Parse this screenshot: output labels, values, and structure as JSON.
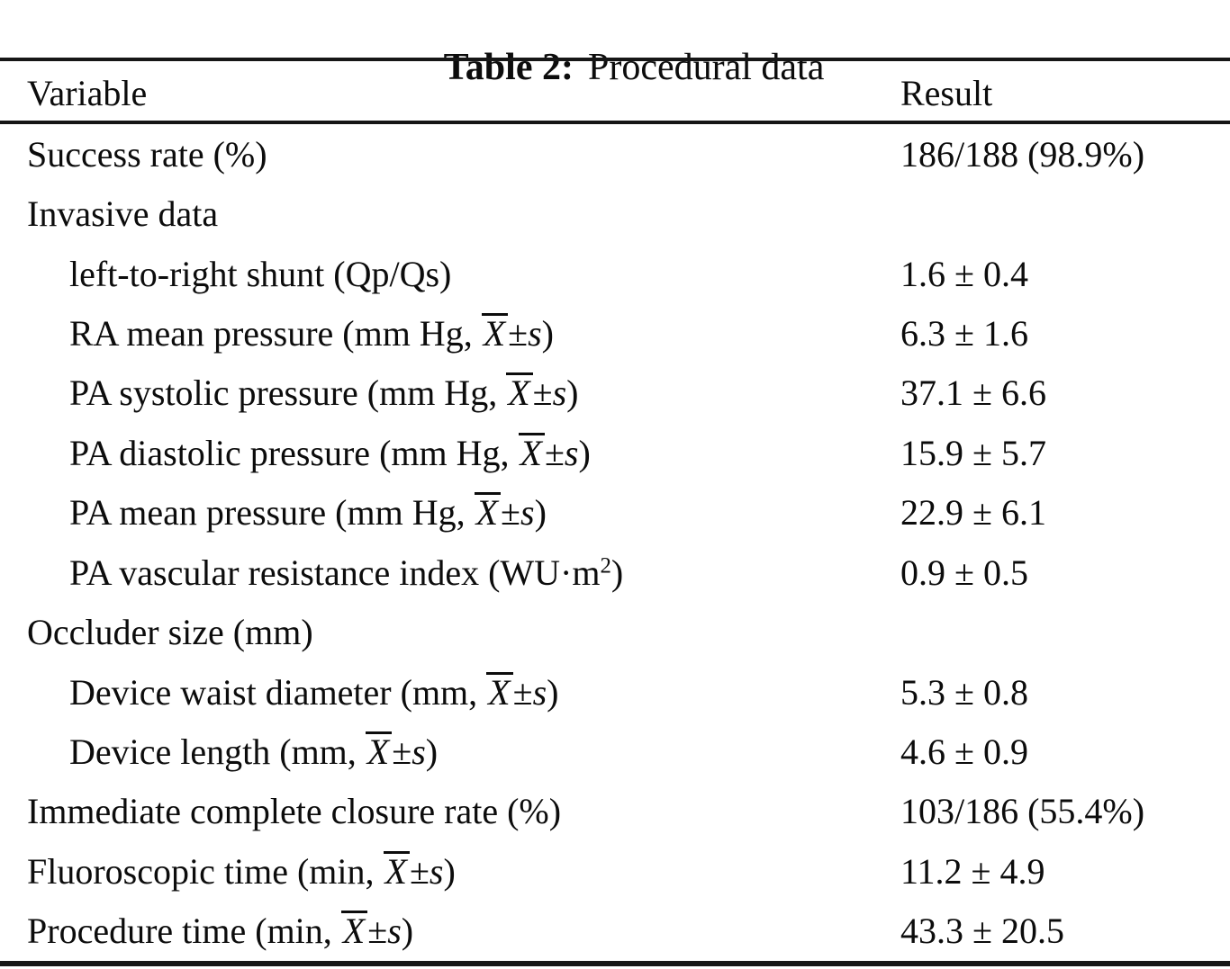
{
  "title": {
    "label_bold": "Table 2:",
    "label_rest": "Procedural data"
  },
  "table": {
    "columns": [
      "Variable",
      "Result"
    ],
    "rows": [
      {
        "label": "Success rate (%)",
        "result": "186/188 (98.9%)",
        "indent": 0
      },
      {
        "label": "Invasive data",
        "result": "",
        "indent": 0
      },
      {
        "label": "left-to-right shunt (Qp/Qs)",
        "result": "1.6 ± 0.4",
        "indent": 1
      },
      {
        "label": "RA mean pressure (mm Hg, [XS])",
        "result": "6.3 ± 1.6",
        "indent": 1
      },
      {
        "label": "PA systolic pressure (mm Hg, [XS])",
        "result": "37.1 ± 6.6",
        "indent": 1
      },
      {
        "label": "PA diastolic pressure (mm Hg, [XS])",
        "result": "15.9 ± 5.7",
        "indent": 1
      },
      {
        "label": "PA mean pressure (mm Hg, [XS])",
        "result": "22.9 ± 6.1",
        "indent": 1
      },
      {
        "label": "PA vascular resistance index (WU·m[SUP2])",
        "result": "0.9 ± 0.5",
        "indent": 1
      },
      {
        "label": "Occluder size (mm)",
        "result": "",
        "indent": 0
      },
      {
        "label": "Device waist diameter (mm, [XS])",
        "result": "5.3 ± 0.8",
        "indent": 1
      },
      {
        "label": "Device length (mm, [XS])",
        "result": "4.6 ± 0.9",
        "indent": 1
      },
      {
        "label": "Immediate complete closure rate (%)",
        "result": "103/186 (55.4%)",
        "indent": 0
      },
      {
        "label": "Fluoroscopic time (min, [XS])",
        "result": "11.2 ± 4.9",
        "indent": 0
      },
      {
        "label": "Procedure time (min, [XS])",
        "result": "43.3 ± 20.5",
        "indent": 0
      }
    ]
  },
  "notation": {
    "xbar_symbol": "X̅±s",
    "superscript_two": "2"
  },
  "colors": {
    "background": "#ffffff",
    "text": "#0c0c0c",
    "rule": "#161616"
  }
}
